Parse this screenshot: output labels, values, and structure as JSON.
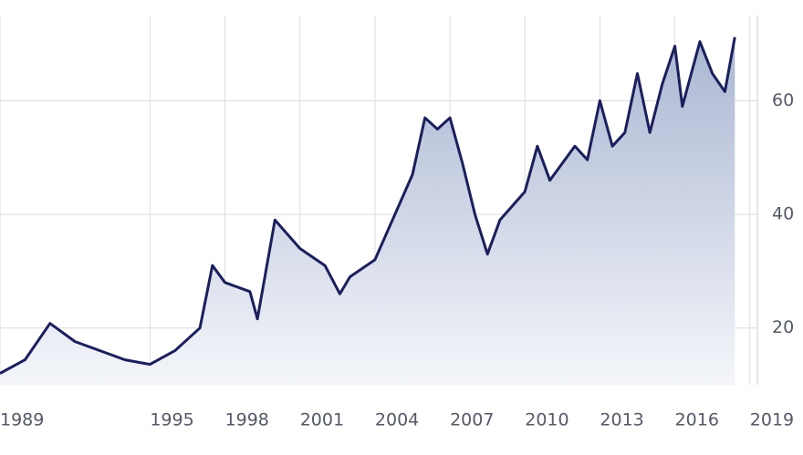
{
  "chart_data": {
    "type": "area",
    "x": [
      1989,
      1990,
      1991,
      1992,
      1993,
      1994,
      1995,
      1996,
      1997,
      1997.5,
      1998,
      1999,
      1999.3,
      2000,
      2001,
      2002,
      2002.6,
      2003,
      2004,
      2005,
      2005.5,
      2006,
      2006.5,
      2007,
      2007.5,
      2008,
      2008.5,
      2009,
      2010,
      2010.5,
      2011,
      2012,
      2012.5,
      2013,
      2013.5,
      2014,
      2014.5,
      2015,
      2015.5,
      2016,
      2016.3,
      2017,
      2017.5,
      2018,
      2018.4
    ],
    "values": [
      12,
      14.4,
      20.8,
      17.6,
      16,
      14.4,
      13.6,
      16,
      20,
      31,
      28,
      26.4,
      21.6,
      39,
      34,
      31,
      26,
      29,
      32,
      42,
      47,
      57,
      55,
      57,
      49,
      40,
      33,
      39,
      44,
      52,
      46,
      52,
      49.6,
      60,
      52,
      54.4,
      64.8,
      54.4,
      63,
      69.6,
      59,
      70.4,
      64.8,
      61.6,
      71.2
    ],
    "color": "#1b1f5c",
    "xlim": [
      1989,
      2019.3
    ],
    "ylim": [
      10,
      75
    ],
    "xticks": [
      1989,
      1995,
      1998,
      2001,
      2004,
      2007,
      2010,
      2013,
      2016,
      2019
    ],
    "yticks": [
      20,
      40,
      60
    ],
    "grid": true
  }
}
